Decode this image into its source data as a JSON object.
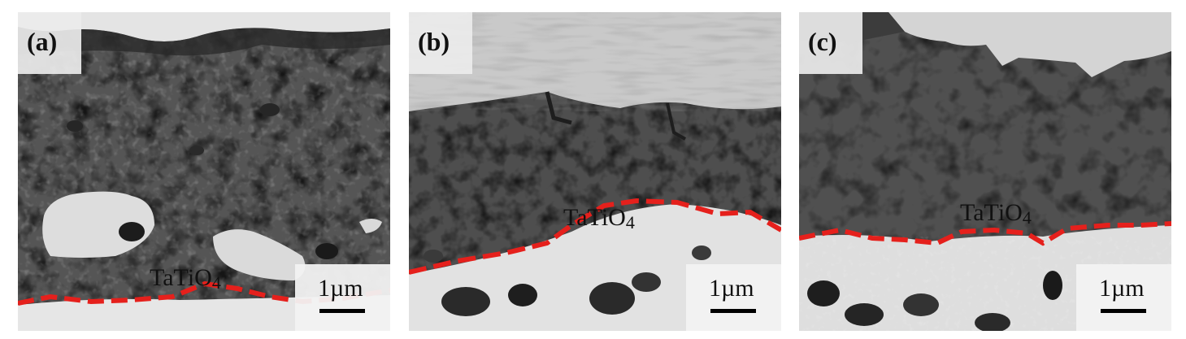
{
  "panels": [
    {
      "label": "(a)",
      "phase_label": "TaTiO",
      "phase_subscript": "4",
      "scale_label": "1µm"
    },
    {
      "label": "(b)",
      "phase_label": "TaTiO",
      "phase_subscript": "4",
      "scale_label": "1µm"
    },
    {
      "label": "(c)",
      "phase_label": "TaTiO",
      "phase_subscript": "4",
      "scale_label": "1µm"
    }
  ],
  "colors": {
    "boundary_dash": "#e5201c",
    "matrix_dark": "#4d4d4d",
    "phase_bright": "#d8d8d8"
  }
}
